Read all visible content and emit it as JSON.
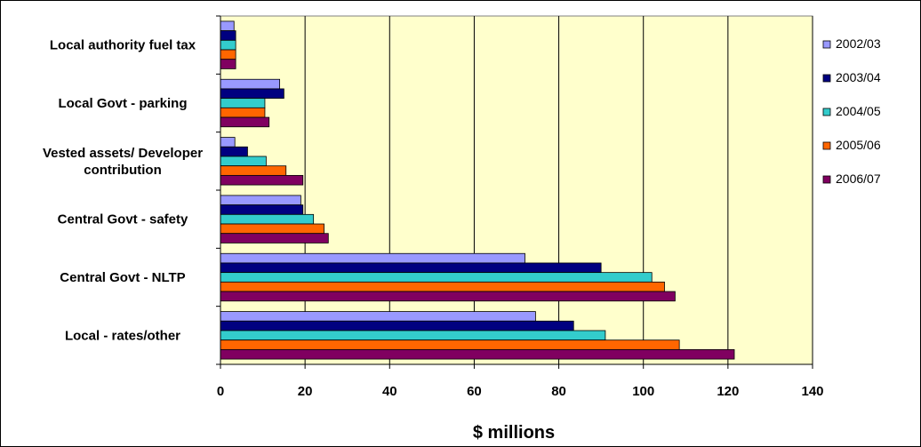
{
  "chart_data": {
    "type": "bar",
    "orientation": "horizontal",
    "categories": [
      "Local authority fuel tax",
      "Local Govt - parking",
      [
        "Vested assets/ Developer",
        "contribution"
      ],
      "Central Govt - safety",
      "Central Govt - NLTP",
      "Local - rates/other"
    ],
    "series": [
      {
        "name": "2002/03",
        "values": [
          3.2,
          14,
          3.4,
          19,
          72,
          74.5
        ]
      },
      {
        "name": "2003/04",
        "values": [
          3.6,
          15,
          6.4,
          19.5,
          90,
          83.5
        ]
      },
      {
        "name": "2004/05",
        "values": [
          3.6,
          10.5,
          10.8,
          22,
          102,
          91
        ]
      },
      {
        "name": "2005/06",
        "values": [
          3.6,
          10.5,
          15.5,
          24.5,
          105,
          108.5
        ]
      },
      {
        "name": "2006/07",
        "values": [
          3.6,
          11.5,
          19.5,
          25.5,
          107.5,
          121.5
        ]
      }
    ],
    "xlabel": "$ millions",
    "ylabel": "",
    "title": "",
    "xlim": [
      0,
      140
    ],
    "xticks": [
      0,
      20,
      40,
      60,
      80,
      100,
      120,
      140
    ],
    "grid": "vertical",
    "legend_position": "right",
    "colors": {
      "plot_background": "#FFFFCC",
      "2002/03": "#9999FF",
      "2003/04": "#000080",
      "2004/05": "#33CCCC",
      "2005/06": "#FF6600",
      "2006/07": "#800060"
    }
  }
}
